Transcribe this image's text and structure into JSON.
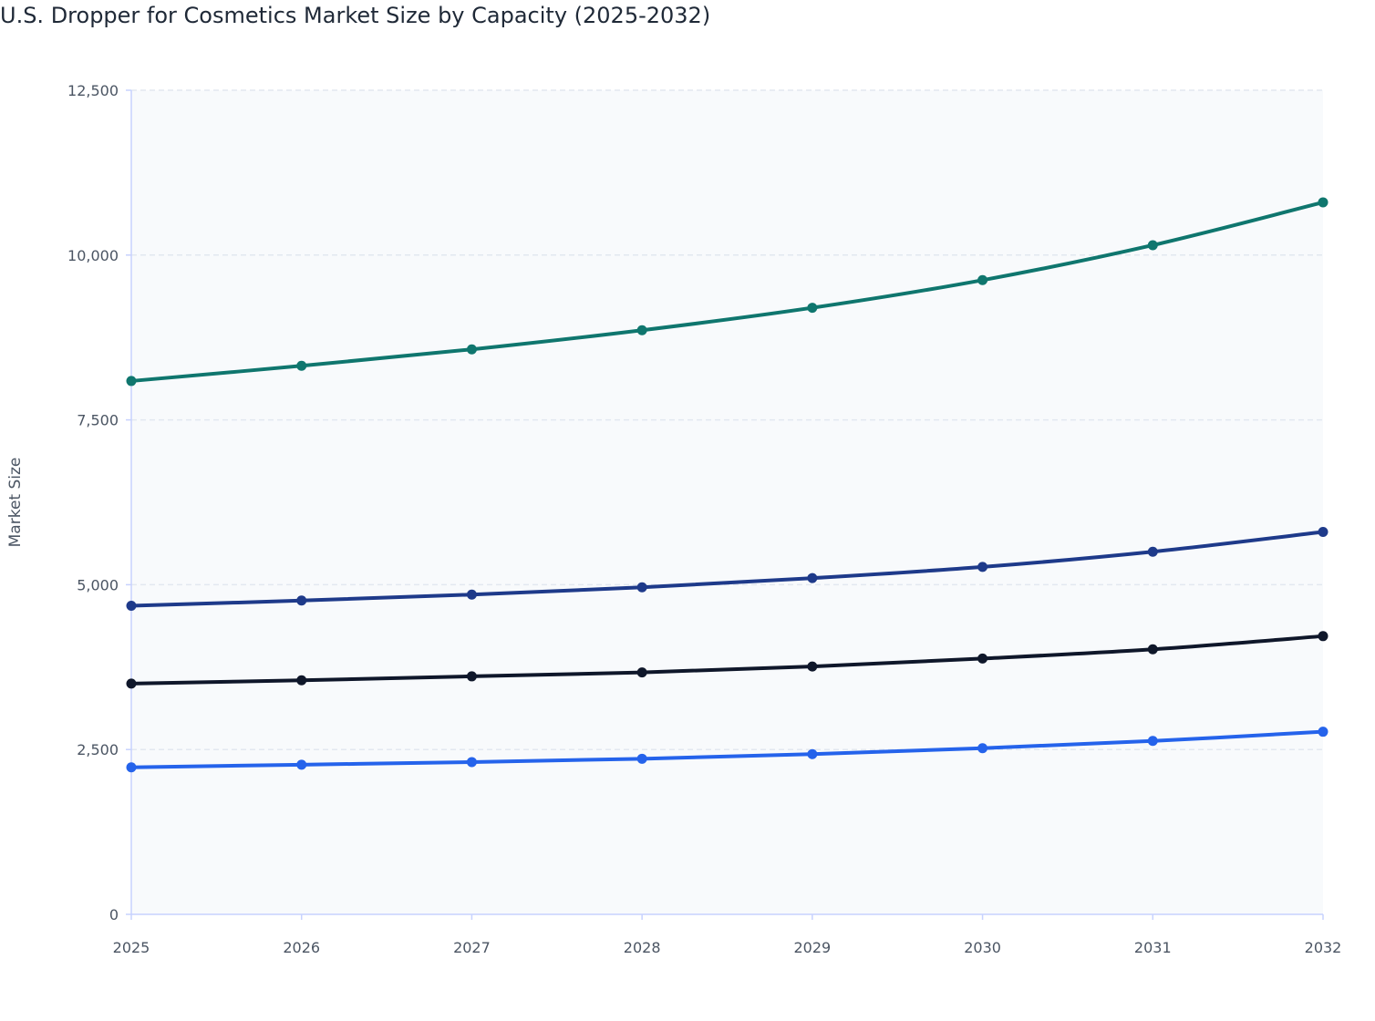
{
  "chart_data": {
    "type": "line",
    "title": "U.S. Dropper for Cosmetics Market Size by Capacity (2025-2032)",
    "xlabel": "",
    "ylabel": "Market Size",
    "x": [
      "2025",
      "2026",
      "2027",
      "2028",
      "2029",
      "2030",
      "2031",
      "2032"
    ],
    "ylim": [
      0,
      12500
    ],
    "yticks": [
      0,
      2500,
      5000,
      7500,
      10000,
      12500
    ],
    "ytick_labels": [
      "0",
      "2,500",
      "5,000",
      "7,500",
      "10,000",
      "12,500"
    ],
    "grid": true,
    "legend": "none",
    "series": [
      {
        "color": "#0f766e",
        "values": [
          8090,
          8320,
          8570,
          8860,
          9200,
          9620,
          10150,
          10800
        ]
      },
      {
        "color": "#1e3a8a",
        "values": [
          4680,
          4760,
          4850,
          4960,
          5100,
          5270,
          5500,
          5800
        ]
      },
      {
        "color": "#0f172a",
        "values": [
          3500,
          3550,
          3610,
          3670,
          3760,
          3880,
          4020,
          4220
        ]
      },
      {
        "color": "#2563eb",
        "values": [
          2230,
          2270,
          2310,
          2360,
          2430,
          2520,
          2630,
          2770
        ]
      }
    ]
  }
}
